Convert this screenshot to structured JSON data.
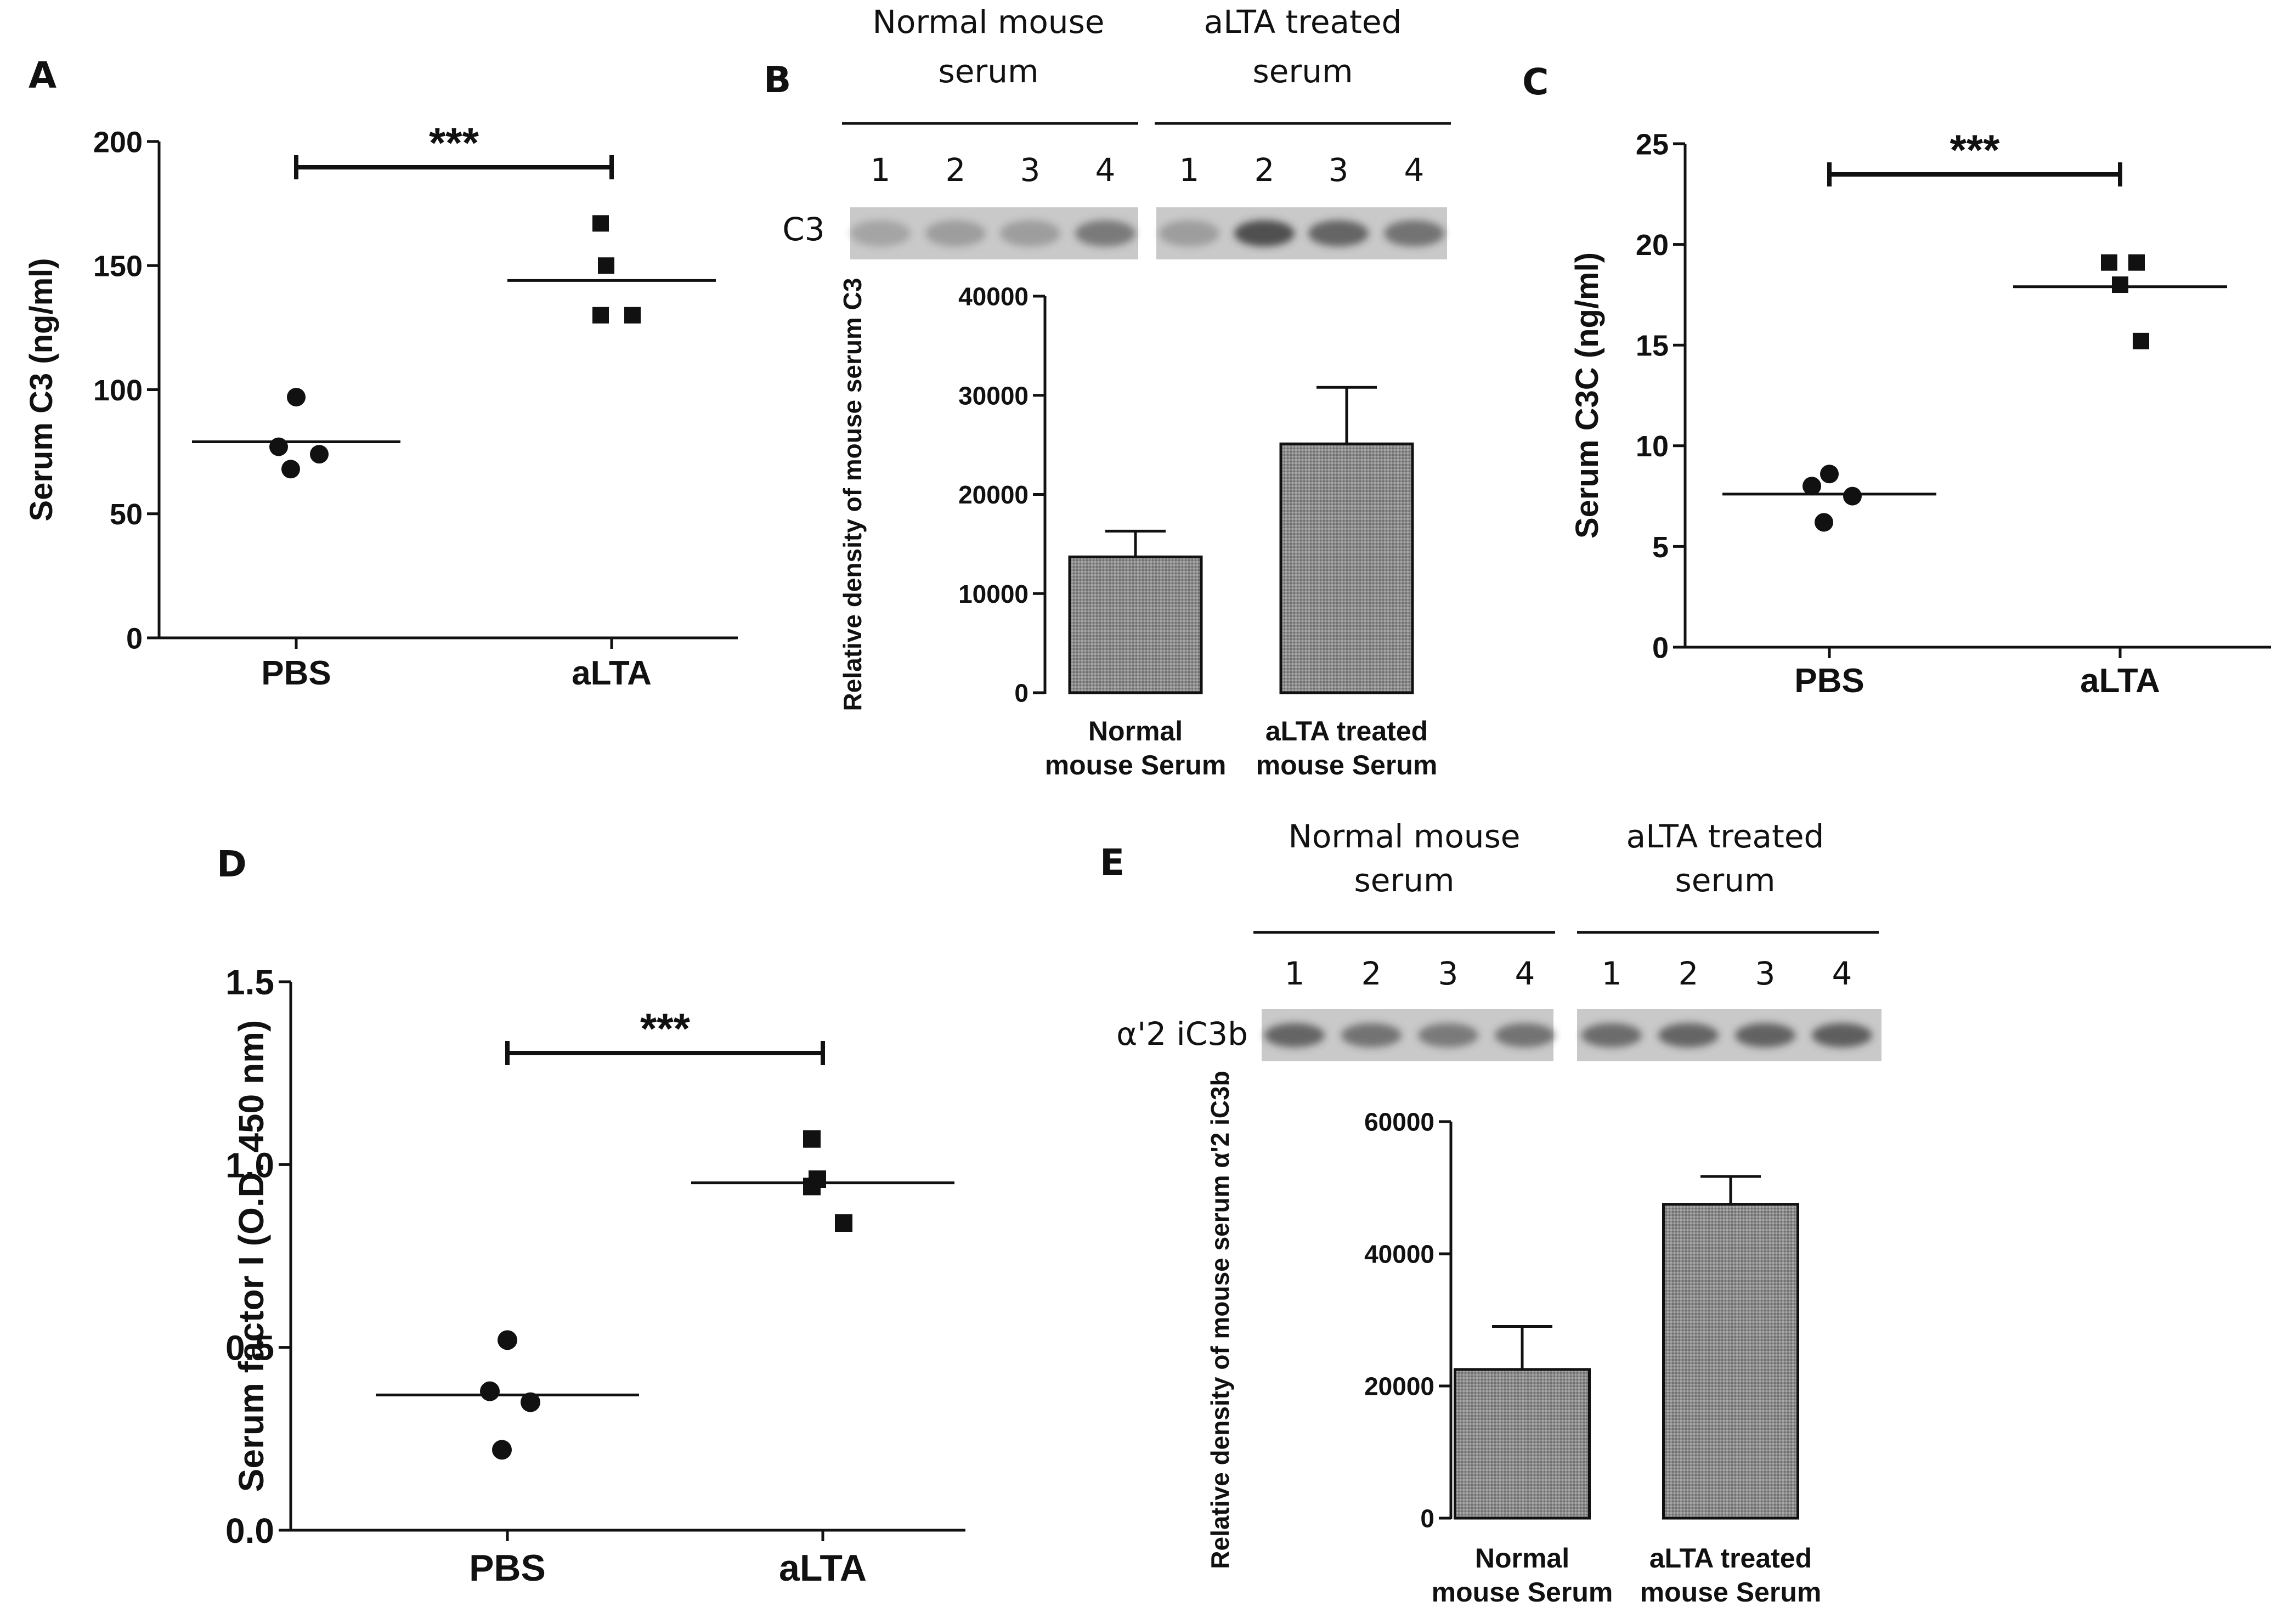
{
  "figure": {
    "colors": {
      "ink": "#111111",
      "bar_fill": "#8c8c8c",
      "blot_bg": "#c9c9c9",
      "band": "#3a3a3a"
    }
  },
  "chart_data": [
    {
      "panel": "A",
      "type": "scatter",
      "ylabel": "Serum C3 (ng/ml)",
      "ylim": [
        0,
        200
      ],
      "yticks": [
        0,
        50,
        100,
        150,
        200
      ],
      "categories": [
        "PBS",
        "aLTA"
      ],
      "series": [
        {
          "name": "PBS",
          "marker": "circle",
          "values": [
            97,
            77,
            74,
            68
          ],
          "mean": 79
        },
        {
          "name": "aLTA",
          "marker": "square",
          "values": [
            167,
            150,
            130,
            130
          ],
          "mean": 144
        }
      ],
      "significance": "***"
    },
    {
      "panel": "B",
      "type": "bar",
      "ylabel": "Relative density of mouse serum C3",
      "ylim": [
        0,
        40000
      ],
      "yticks": [
        0,
        10000,
        20000,
        30000,
        40000
      ],
      "categories": [
        "Normal mouse Serum",
        "aLTA treated mouse Serum"
      ],
      "values": [
        13700,
        25100
      ],
      "errors": [
        2600,
        5700
      ],
      "blot": {
        "label": "C3",
        "groups": [
          "Normal mouse serum",
          "aLTA treated serum"
        ],
        "lanes": [
          "1",
          "2",
          "3",
          "4",
          "1",
          "2",
          "3",
          "4"
        ],
        "band_intensity": [
          0.25,
          0.3,
          0.3,
          0.55,
          0.3,
          0.85,
          0.7,
          0.6
        ]
      }
    },
    {
      "panel": "C",
      "type": "scatter",
      "ylabel": "Serum C3C (ng/ml)",
      "ylim": [
        0,
        25
      ],
      "yticks": [
        0,
        5,
        10,
        15,
        20,
        25
      ],
      "categories": [
        "PBS",
        "aLTA"
      ],
      "series": [
        {
          "name": "PBS",
          "marker": "circle",
          "values": [
            8.6,
            8.0,
            7.5,
            6.2
          ],
          "mean": 7.6
        },
        {
          "name": "aLTA",
          "marker": "square",
          "values": [
            19.1,
            19.1,
            18.0,
            15.2
          ],
          "mean": 17.9
        }
      ],
      "significance": "***"
    },
    {
      "panel": "D",
      "type": "scatter",
      "ylabel": "Serum factor I (O.D. 450 nm)",
      "ylim": [
        0,
        1.5
      ],
      "yticks": [
        "0.0",
        "0.5",
        "1.0",
        "1.5"
      ],
      "categories": [
        "PBS",
        "aLTA"
      ],
      "series": [
        {
          "name": "PBS",
          "marker": "circle",
          "values": [
            0.52,
            0.38,
            0.35,
            0.22
          ],
          "mean": 0.37
        },
        {
          "name": "aLTA",
          "marker": "square",
          "values": [
            1.07,
            0.96,
            0.94,
            0.84
          ],
          "mean": 0.95
        }
      ],
      "significance": "***"
    },
    {
      "panel": "E",
      "type": "bar",
      "ylabel": "Relative density of mouse serum α'2 iC3b",
      "ylim": [
        0,
        60000
      ],
      "yticks": [
        0,
        20000,
        40000,
        60000
      ],
      "categories": [
        "Normal mouse Serum",
        "aLTA treated mouse Serum"
      ],
      "values": [
        22500,
        47500
      ],
      "errors": [
        6500,
        4200
      ],
      "blot": {
        "label": "α'2 iC3b",
        "groups": [
          "Normal mouse serum",
          "aLTA treated serum"
        ],
        "lanes": [
          "1",
          "2",
          "3",
          "4",
          "1",
          "2",
          "3",
          "4"
        ],
        "band_intensity": [
          0.7,
          0.6,
          0.55,
          0.6,
          0.65,
          0.7,
          0.72,
          0.75
        ]
      }
    }
  ]
}
